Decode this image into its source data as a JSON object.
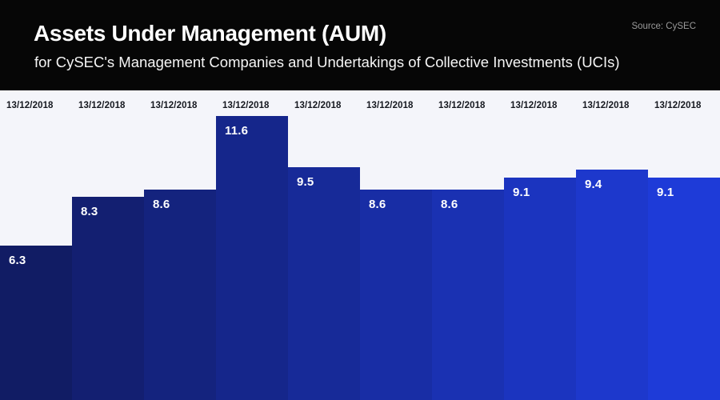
{
  "header": {
    "title": "Assets Under Management (AUM)",
    "subtitle": "for CySEC's Management Companies and Undertakings of Collective Investments (UCIs)",
    "source": "Source: CySEC"
  },
  "colors": {
    "header_bg": "#060606",
    "chart_bg": "#f4f5fa",
    "date_label_color": "#15181f",
    "value_label_color": "#ffffff",
    "source_color": "#9a9a9a"
  },
  "chart_data": {
    "type": "bar",
    "title": "Assets Under Management (AUM)",
    "subtitle": "for CySEC's Management Companies and Undertakings of Collective Investments (UCIs)",
    "source": "Source: CySEC",
    "categories": [
      "13/12/2018",
      "13/12/2018",
      "13/12/2018",
      "13/12/2018",
      "13/12/2018",
      "13/12/2018",
      "13/12/2018",
      "13/12/2018",
      "13/12/2018",
      "13/12/2018"
    ],
    "values": [
      6.3,
      8.3,
      8.6,
      11.6,
      9.5,
      8.6,
      8.6,
      9.1,
      9.4,
      9.1
    ],
    "bar_colors": [
      "#111c64",
      "#131f71",
      "#14237e",
      "#15268b",
      "#172a98",
      "#182da5",
      "#1a31b2",
      "#1b34bf",
      "#1d38cc",
      "#1e3bd8"
    ],
    "xlabel": "",
    "ylabel": "",
    "ylim": [
      0,
      12.65
    ],
    "grid": false,
    "legend": false,
    "value_labels_shown": true,
    "category_labels_position": "top"
  }
}
